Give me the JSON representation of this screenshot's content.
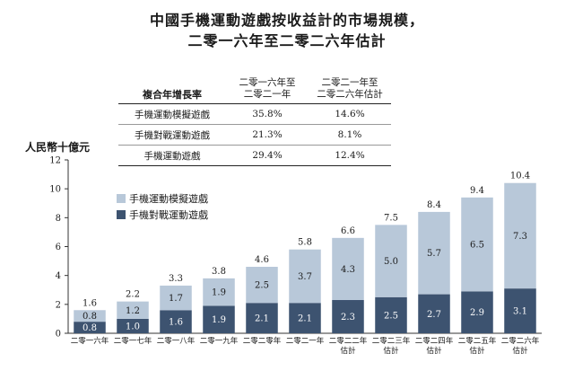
{
  "title_line1": "中國手機運動遊戲按收益計的市場規模，",
  "title_line2": "二零一六年至二零二六年估計",
  "cagr_table": {
    "header_label": "複合年增長率",
    "period1": [
      "二零一六年至",
      "二零二一年"
    ],
    "period2": [
      "二零二一年至",
      "二零二六年估計"
    ],
    "rows": [
      {
        "label": "手機運動模擬遊戲",
        "p1": "35.8%",
        "p2": "14.6%"
      },
      {
        "label": "手機對戰運動遊戲",
        "p1": "21.3%",
        "p2": "8.1%"
      },
      {
        "label": "手機運動遊戲",
        "p1": "29.4%",
        "p2": "12.4%"
      }
    ]
  },
  "chart_data": {
    "type": "bar",
    "stacked": true,
    "ylabel": "人民幣十億元",
    "ylim": [
      0,
      12
    ],
    "yticks": [
      0,
      2,
      4,
      6,
      8,
      10,
      12
    ],
    "categories": [
      [
        "二零一六年"
      ],
      [
        "二零一七年"
      ],
      [
        "二零一八年"
      ],
      [
        "二零一九年"
      ],
      [
        "二零二零年"
      ],
      [
        "二零二一年"
      ],
      [
        "二零二二年",
        "估計"
      ],
      [
        "二零二三年",
        "估計"
      ],
      [
        "二零二四年",
        "估計"
      ],
      [
        "二零二五年",
        "估計"
      ],
      [
        "二零二六年",
        "估計"
      ]
    ],
    "series": [
      {
        "name": "手機對戰運動遊戲",
        "color": "#3d5370",
        "values": [
          0.8,
          1.0,
          1.6,
          1.9,
          2.1,
          2.1,
          2.3,
          2.5,
          2.7,
          2.9,
          3.1
        ]
      },
      {
        "name": "手機運動模擬遊戲",
        "color": "#b8c8d9",
        "values": [
          0.8,
          1.2,
          1.7,
          1.9,
          2.5,
          3.7,
          4.3,
          5.0,
          5.7,
          6.5,
          7.3
        ]
      }
    ],
    "totals": [
      1.6,
      2.2,
      3.3,
      3.8,
      4.6,
      5.8,
      6.6,
      7.5,
      8.4,
      9.4,
      10.4
    ],
    "legend": "upper-left",
    "legend_order": [
      "手機運動模擬遊戲",
      "手機對戰運動遊戲"
    ]
  }
}
